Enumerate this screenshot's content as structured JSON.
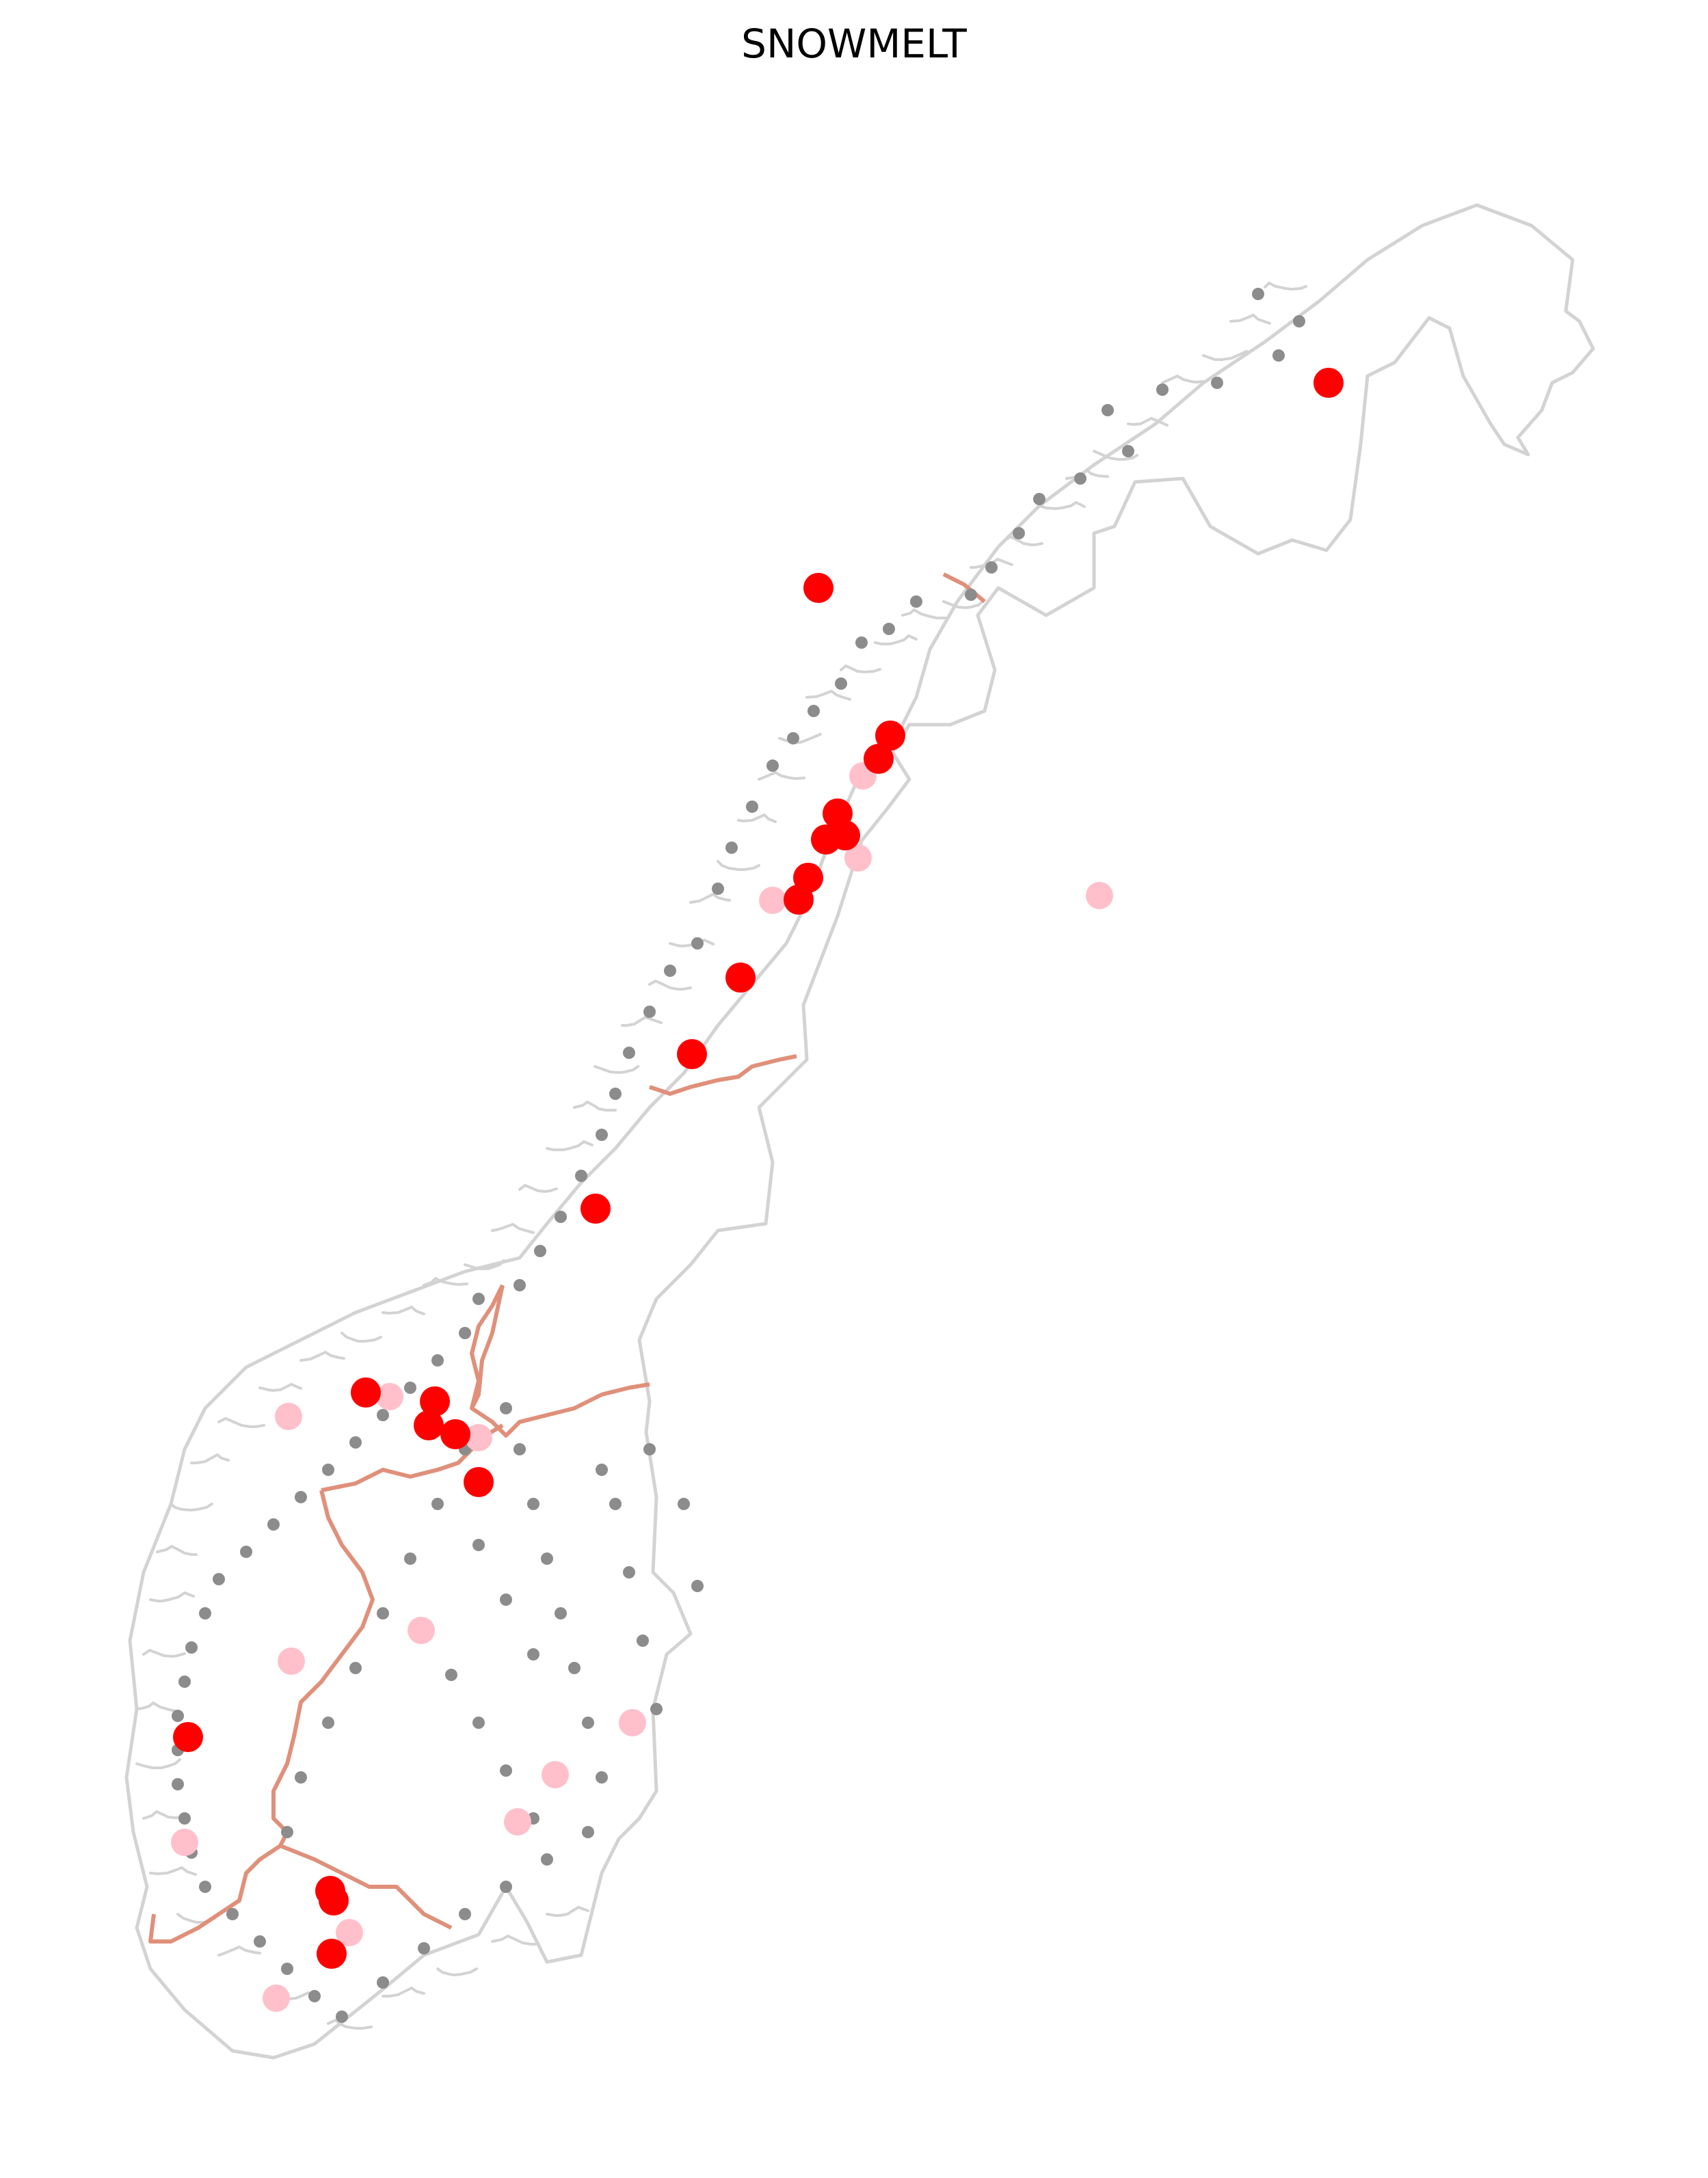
{
  "title": "SNOWMELT",
  "colors": {
    "outline": "#d3d3d3",
    "region_border": "#e0907a",
    "station_minor": "#8c8c8c",
    "station_moderate": "#ffc0cb",
    "station_strong": "#ff0000"
  },
  "legend": null
}
